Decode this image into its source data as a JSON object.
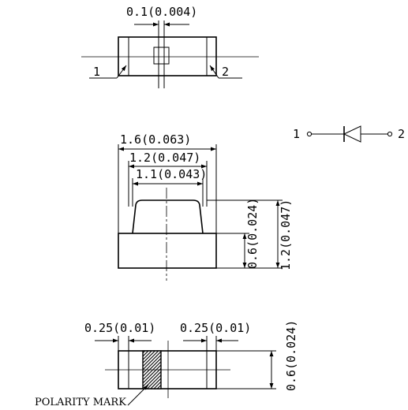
{
  "top_view": {
    "dim_top": "0.1(0.004)",
    "pin1": "1",
    "pin2": "2"
  },
  "side_view": {
    "dim_1": "1.6(0.063)",
    "dim_2": "1.2(0.047)",
    "dim_3": "1.1(0.043)",
    "dim_4": "0.6(0.024)",
    "dim_5": "1.2(0.047)"
  },
  "symbol": {
    "pin1": "1",
    "pin2": "2"
  },
  "bottom_view": {
    "dim_left": "0.25(0.01)",
    "dim_right": "0.25(0.01)",
    "dim_height": "0.6(0.024)",
    "polarity": "POLARITY MARK"
  },
  "colors": {
    "ink": "#000000",
    "background": "#ffffff"
  }
}
